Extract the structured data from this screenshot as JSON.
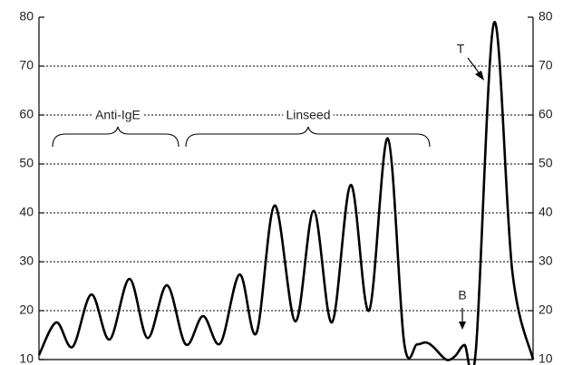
{
  "chart_data": {
    "type": "line",
    "x": [
      0,
      3.5,
      6.8,
      10.6,
      14.3,
      18.3,
      22,
      25.9,
      29.7,
      33.2,
      36.7,
      40.6,
      44,
      47.7,
      51.9,
      55.6,
      59.3,
      63.1,
      66.8,
      70.6,
      73.9,
      76.5,
      78.3,
      79.8,
      82.4,
      84.2,
      86.1,
      88.4,
      92.1,
      95.8,
      100
    ],
    "series": [
      {
        "color": "#000000",
        "values": [
          10.9,
          17.6,
          12.6,
          23.3,
          14.1,
          26.5,
          14.4,
          25.2,
          13.1,
          18.9,
          13.3,
          27.4,
          15.4,
          41.5,
          17.8,
          40.4,
          17.6,
          45.7,
          20,
          55.2,
          13.5,
          13.1,
          13.5,
          12.6,
          10,
          10.7,
          13,
          11.7,
          78.9,
          28,
          10
        ]
      }
    ],
    "xlim": [
      0,
      100
    ],
    "ylim": [
      10,
      80
    ],
    "yticks": [
      10,
      20,
      30,
      40,
      50,
      60,
      70,
      80
    ],
    "grid": true,
    "annotations": [
      "Anti-IgE",
      "Linseed",
      "T",
      "B"
    ]
  }
}
